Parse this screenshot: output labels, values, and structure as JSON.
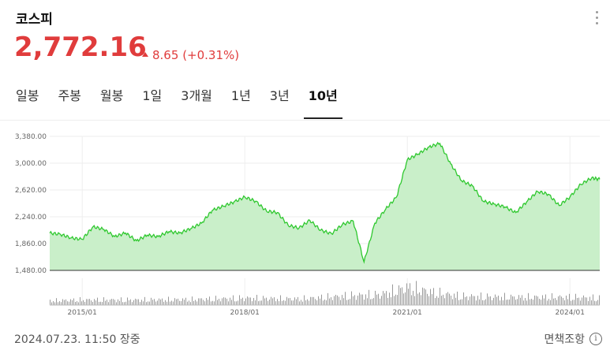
{
  "header": {
    "title": "코스피",
    "price": "2,772.16",
    "change": "8.65",
    "change_pct": "(+0.31%)",
    "up_color": "#e03c3c"
  },
  "tabs": [
    {
      "label": "일봉",
      "active": false
    },
    {
      "label": "주봉",
      "active": false
    },
    {
      "label": "월봉",
      "active": false
    },
    {
      "label": "1일",
      "active": false
    },
    {
      "label": "3개월",
      "active": false
    },
    {
      "label": "1년",
      "active": false
    },
    {
      "label": "3년",
      "active": false
    },
    {
      "label": "10년",
      "active": true
    }
  ],
  "chart_data": {
    "type": "area",
    "x_ticks": [
      "2015/01",
      "2018/01",
      "2021/01",
      "2024/01"
    ],
    "y_ticks": [
      "3,380.00",
      "3,000.00",
      "2,620.00",
      "2,240.00",
      "1,860.00",
      "1,480.00"
    ],
    "ylim": [
      1480,
      3380
    ],
    "xlim": [
      2014.4,
      2024.55
    ],
    "line_color": "#2fc82f",
    "fill_color": "#c9efc9",
    "series": [
      {
        "x": [
          2014.4,
          2014.6,
          2014.8,
          2015.0,
          2015.2,
          2015.4,
          2015.6,
          2015.8,
          2016.0,
          2016.2,
          2016.4,
          2016.6,
          2016.8,
          2017.0,
          2017.2,
          2017.4,
          2017.6,
          2017.8,
          2018.0,
          2018.2,
          2018.4,
          2018.6,
          2018.8,
          2019.0,
          2019.2,
          2019.4,
          2019.6,
          2019.8,
          2020.0,
          2020.2,
          2020.4,
          2020.6,
          2020.8,
          2021.0,
          2021.2,
          2021.4,
          2021.6,
          2021.8,
          2022.0,
          2022.2,
          2022.4,
          2022.6,
          2022.8,
          2023.0,
          2023.2,
          2023.4,
          2023.6,
          2023.8,
          2024.0,
          2024.2,
          2024.4,
          2024.55
        ],
        "values": [
          2010,
          1990,
          1940,
          1920,
          2100,
          2060,
          1960,
          2010,
          1900,
          1980,
          1960,
          2030,
          2010,
          2070,
          2150,
          2330,
          2390,
          2450,
          2520,
          2460,
          2320,
          2300,
          2120,
          2080,
          2190,
          2050,
          2000,
          2130,
          2180,
          1600,
          2150,
          2350,
          2520,
          3050,
          3130,
          3230,
          3280,
          2990,
          2750,
          2680,
          2460,
          2420,
          2380,
          2300,
          2450,
          2600,
          2560,
          2400,
          2520,
          2700,
          2790,
          2772
        ]
      }
    ],
    "volume": {
      "x": [
        2014.4,
        2015.0,
        2016.0,
        2017.0,
        2018.0,
        2019.0,
        2020.0,
        2020.5,
        2021.0,
        2021.5,
        2022.0,
        2023.0,
        2024.0,
        2024.55
      ],
      "values": [
        0.25,
        0.3,
        0.3,
        0.32,
        0.4,
        0.35,
        0.55,
        0.6,
        1.0,
        0.7,
        0.5,
        0.45,
        0.45,
        0.4
      ]
    }
  },
  "footer": {
    "timestamp": "2024.07.23. 11:50 장중",
    "disclaimer": "면책조항",
    "info_icon": "i"
  }
}
